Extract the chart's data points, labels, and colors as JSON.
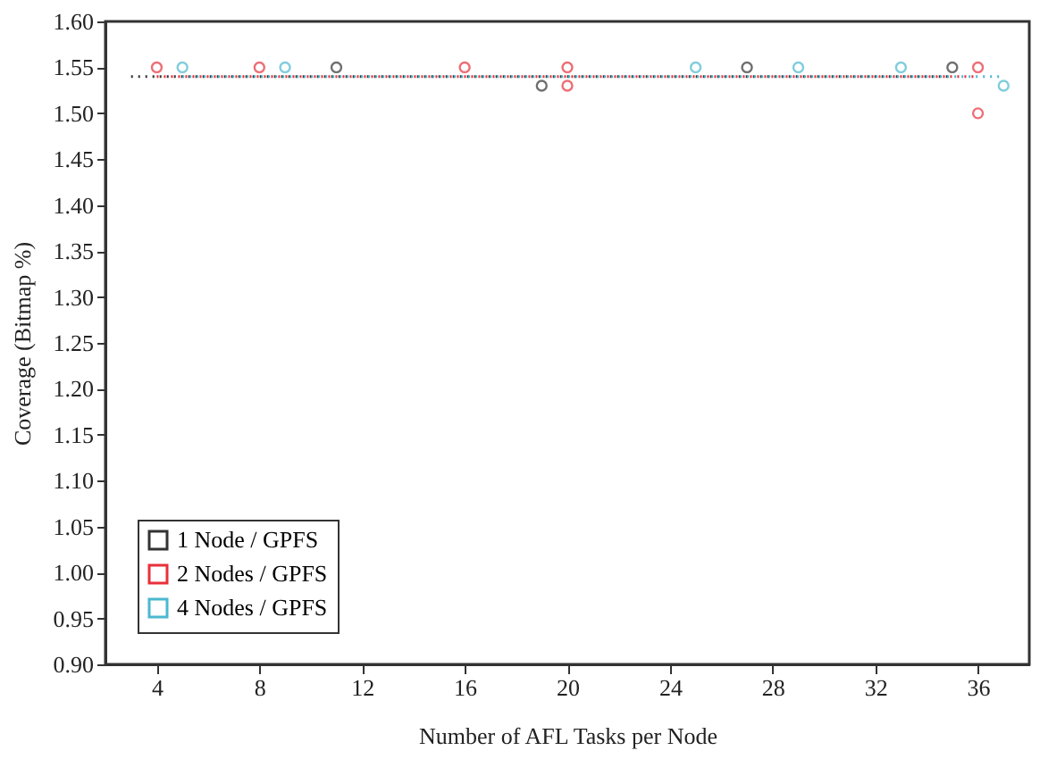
{
  "chart_data": {
    "type": "line",
    "xlabel": "Number of AFL Tasks per Node",
    "ylabel": "Coverage (Bitmap %)",
    "xlim": [
      2,
      38
    ],
    "xticks": [
      4,
      8,
      12,
      16,
      20,
      24,
      28,
      32,
      36
    ],
    "ylim": [
      0.9,
      1.6
    ],
    "yticks": [
      {
        "value": 0.9,
        "label": "0.90"
      },
      0.95,
      {
        "value": 1.0,
        "label": "1.00"
      },
      1.05,
      {
        "value": 1.1,
        "label": "1.10"
      },
      1.15,
      {
        "value": 1.2,
        "label": "1.20"
      },
      1.25,
      {
        "value": 1.3,
        "label": "1.30"
      },
      1.35,
      {
        "value": 1.4,
        "label": "1.40"
      },
      1.45,
      {
        "value": 1.5,
        "label": "1.50"
      },
      1.55,
      {
        "value": 1.6,
        "label": "1.60"
      }
    ],
    "grid": false,
    "legend": "bottom left",
    "line_style": "dotted",
    "marker": "none",
    "series": [
      {
        "name": "1 Node  / GPFS",
        "color": "#333333",
        "x": [
          3,
          35
        ],
        "values": [
          1.54,
          1.54
        ]
      },
      {
        "name": "2 Nodes / GPFS",
        "color": "#e8303a",
        "x": [
          4,
          36
        ],
        "values": [
          1.54,
          1.54
        ]
      },
      {
        "name": "4 Nodes / GPFS",
        "color": "#4ab8d0",
        "x": [
          5,
          37
        ],
        "values": [
          1.54,
          1.54
        ]
      },
      {
        "color": "#333333",
        "type": "scatter",
        "marker": "circle",
        "x": [
          11,
          19,
          27,
          35
        ],
        "values": [
          1.55,
          1.53,
          1.55,
          1.55
        ]
      },
      {
        "color": "#e8303a",
        "type": "scatter",
        "marker": "circle",
        "x": [
          4,
          8,
          16,
          20,
          20,
          36,
          36
        ],
        "values": [
          1.55,
          1.55,
          1.55,
          1.55,
          1.53,
          1.55,
          1.5
        ]
      },
      {
        "color": "#4ab8d0",
        "type": "scatter",
        "marker": "circle",
        "x": [
          5,
          9,
          25,
          29,
          33,
          37
        ],
        "values": [
          1.55,
          1.55,
          1.55,
          1.55,
          1.55,
          1.53
        ]
      }
    ]
  }
}
